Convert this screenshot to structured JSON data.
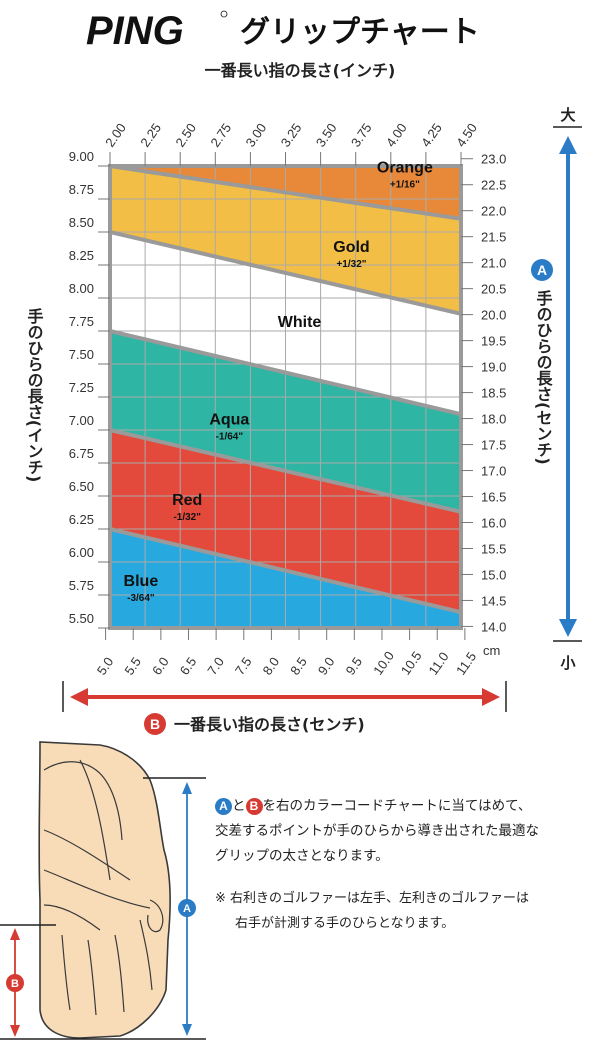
{
  "header": {
    "brand": "PING",
    "title": "グリップチャート",
    "top_axis_title": "一番長い指の長さ(インチ)"
  },
  "chart_data": {
    "type": "area",
    "x_inch_ticks": [
      "2.00",
      "2.25",
      "2.50",
      "2.75",
      "3.00",
      "3.25",
      "3.50",
      "3.75",
      "4.00",
      "4.25",
      "4.50"
    ],
    "x_cm_ticks": [
      "5.0",
      "5.5",
      "6.0",
      "6.5",
      "7.0",
      "7.5",
      "8.0",
      "8.5",
      "9.0",
      "9.5",
      "10.0",
      "10.5",
      "11.0",
      "11.5"
    ],
    "x_cm_unit": "cm",
    "y_inch_ticks": [
      "9.00",
      "8.75",
      "8.50",
      "8.25",
      "8.00",
      "7.75",
      "7.50",
      "7.25",
      "7.00",
      "6.75",
      "6.50",
      "6.25",
      "6.00",
      "5.75",
      "5.50"
    ],
    "y_cm_ticks": [
      "23.0",
      "22.5",
      "22.0",
      "21.5",
      "21.0",
      "20.5",
      "20.0",
      "19.5",
      "19.0",
      "18.5",
      "18.0",
      "17.5",
      "17.0",
      "16.5",
      "16.0",
      "15.5",
      "15.0",
      "14.5",
      "14.0"
    ],
    "xlim_inch": [
      2.0,
      4.5
    ],
    "ylim_inch": [
      5.5,
      9.0
    ],
    "grid": true,
    "left_axis_title": "手のひらの長さ(インチ)",
    "right_axis_title": "手のひらの長さ(センチ)",
    "right_badge": "A",
    "right_top": "大",
    "right_bottom": "小",
    "bottom_badge": "B",
    "bottom_axis_title": "一番長い指の長さ(センチ)",
    "boundaries": [
      {
        "name": "orange_gold",
        "at_x_2_00": 9.0,
        "at_x_4_50": 8.6
      },
      {
        "name": "gold_white",
        "at_x_2_00": 8.5,
        "at_x_4_50": 7.88
      },
      {
        "name": "white_aqua",
        "at_x_2_00": 7.75,
        "at_x_4_50": 7.12
      },
      {
        "name": "aqua_red",
        "at_x_2_00": 7.0,
        "at_x_4_50": 6.38
      },
      {
        "name": "red_blue",
        "at_x_2_00": 6.25,
        "at_x_4_50": 5.62
      }
    ],
    "bands": [
      {
        "name": "Orange",
        "size": "+1/16\"",
        "color": "#e8893a",
        "label_x": 4.1,
        "label_y": 8.95
      },
      {
        "name": "Gold",
        "size": "+1/32\"",
        "color": "#f2be45",
        "label_x": 3.72,
        "label_y": 8.35
      },
      {
        "name": "White",
        "size": "",
        "color": "#ffffff",
        "label_x": 3.35,
        "label_y": 7.78
      },
      {
        "name": "Aqua",
        "size": "-1/64\"",
        "color": "#2fb5a3",
        "label_x": 2.85,
        "label_y": 7.04
      },
      {
        "name": "Red",
        "size": "-1/32\"",
        "color": "#e34a3b",
        "label_x": 2.55,
        "label_y": 6.43
      },
      {
        "name": "Blue",
        "size": "-3/64\"",
        "color": "#27a9df",
        "label_x": 2.22,
        "label_y": 5.82
      }
    ],
    "colors": {
      "grid": "#aaaaaa",
      "frame": "#9a9a9a",
      "axis_arrow": "#2a7cc7",
      "bottom_arrow": "#d63a33"
    }
  },
  "hand": {
    "badge_a": "A",
    "badge_b": "B"
  },
  "notes": {
    "line1_badge_a": "A",
    "line1_to": "と",
    "line1_badge_b": "B",
    "line1_text": "を右のカラーコードチャートに当てはめて、",
    "line2": "交差するポイントが手のひらから導き出された最適な",
    "line3": "グリップの太さとなります。",
    "caution_mark": "※",
    "caution1": "右利きのゴルファーは左手、左利きのゴルファーは",
    "caution2": "右手が計測する手のひらとなります。"
  }
}
